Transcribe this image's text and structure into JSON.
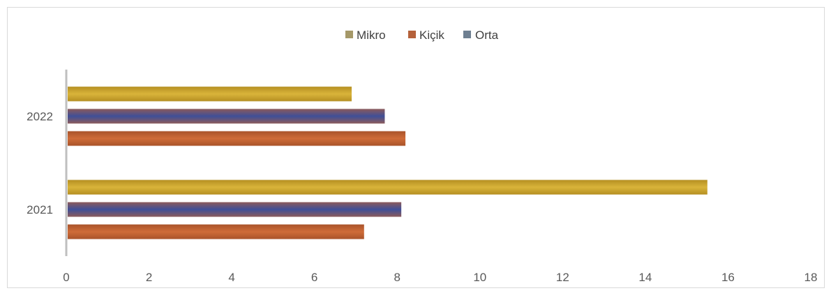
{
  "chart_data": {
    "type": "bar",
    "orientation": "horizontal",
    "title": "",
    "xlabel": "",
    "ylabel": "",
    "categories": [
      "2021",
      "2022"
    ],
    "series": [
      {
        "name": "Mikro",
        "values": [
          15.5,
          6.9
        ],
        "color": "#C9A227"
      },
      {
        "name": "Kiçik",
        "values": [
          7.2,
          8.2
        ],
        "color": "#C0612F"
      },
      {
        "name": "Orta",
        "values": [
          8.1,
          7.7
        ],
        "color": "#4E5A8C"
      }
    ],
    "bar_order_top_to_bottom": [
      "Mikro",
      "Orta",
      "Kiçik"
    ],
    "xlim": [
      0,
      18
    ],
    "x_ticks": [
      0,
      2,
      4,
      6,
      8,
      10,
      12,
      14,
      16,
      18
    ],
    "grid": false,
    "legend_position": "top-center",
    "legend_colors": {
      "Mikro": "#A59868",
      "Kiçik": "#B5613A",
      "Orta": "#6E7F91"
    }
  }
}
